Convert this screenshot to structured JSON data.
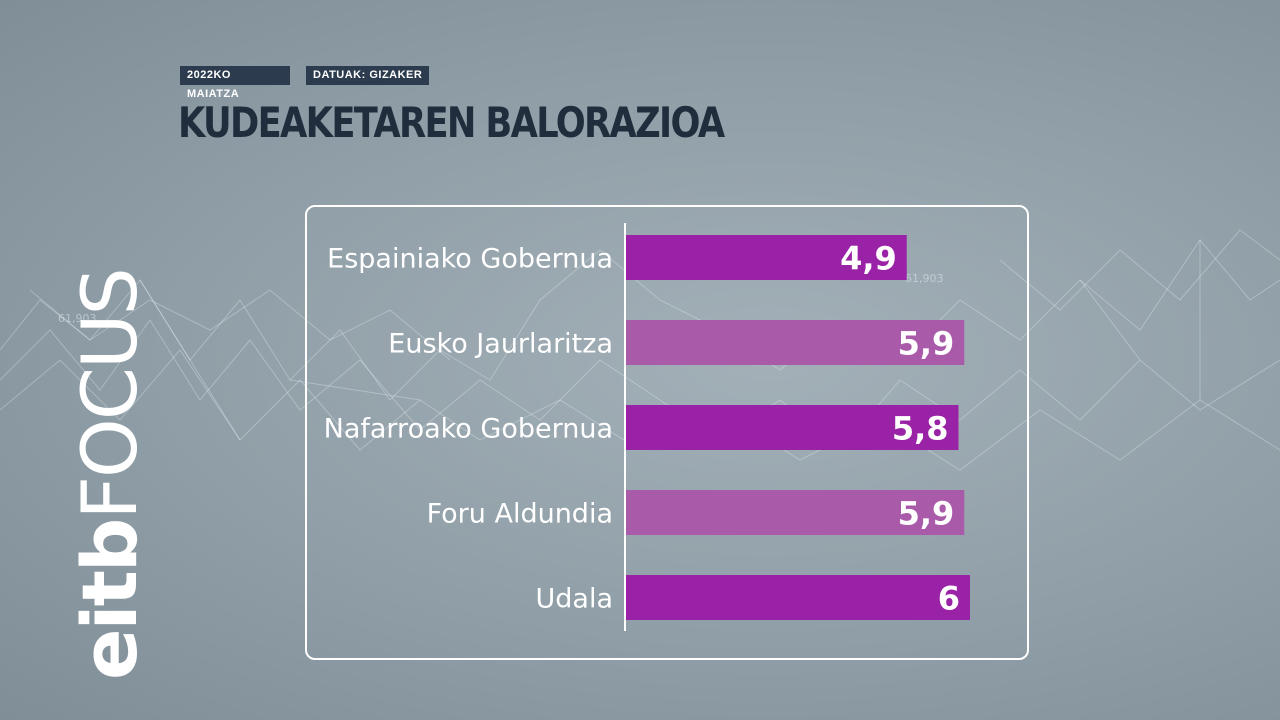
{
  "header": {
    "date_tag": "2022KO MAIATZA",
    "source_tag": "DATUAK: GIZAKER",
    "title": "KUDEAKETAREN BALORAZIOA"
  },
  "logo": {
    "bold_text": "eitb",
    "light_text": "FOCUS"
  },
  "background": {
    "net_labels": [
      "61,903",
      "61,903"
    ]
  },
  "colors": {
    "bar_primary": "#9a22a6",
    "bar_secondary": "#a95aa9",
    "title": "#1f2d3d",
    "tag_bg": "#2c3c4e"
  },
  "chart_data": {
    "type": "bar",
    "orientation": "horizontal",
    "categories": [
      "Espainiako Gobernua",
      "Eusko Jaurlaritza",
      "Nafarroako Gobernua",
      "Foru Aldundia",
      "Udala"
    ],
    "values": [
      4.9,
      5.9,
      5.8,
      5.9,
      6
    ],
    "value_labels": [
      "4,9",
      "5,9",
      "5,8",
      "5,9",
      "6"
    ],
    "bar_styles": [
      "primary",
      "secondary",
      "primary",
      "secondary",
      "primary"
    ],
    "grid": false,
    "legend": "none"
  }
}
